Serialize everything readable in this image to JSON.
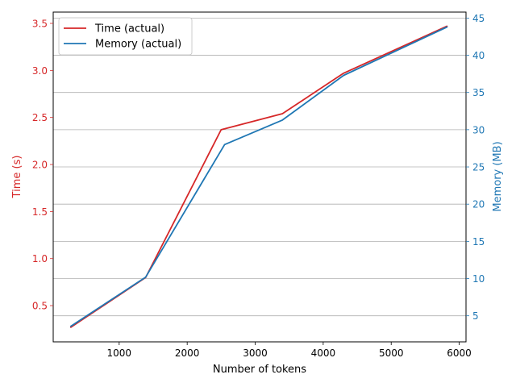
{
  "chart_data": {
    "type": "line",
    "title": "",
    "xlabel": "Number of tokens",
    "ylabel_left": "Time (s)",
    "ylabel_right": "Memory (MB)",
    "xlim": [
      30,
      6100
    ],
    "ylim_left": [
      0.115,
      3.62
    ],
    "ylim_right": [
      1.5,
      45.8
    ],
    "x_ticks": [
      1000,
      2000,
      3000,
      4000,
      5000,
      6000
    ],
    "y_left_ticks": [
      0.5,
      1.0,
      1.5,
      2.0,
      2.5,
      3.0,
      3.5
    ],
    "y_right_ticks": [
      5,
      10,
      15,
      20,
      25,
      30,
      35,
      40,
      45
    ],
    "grid": "horizontal lines at right-axis ticks",
    "legend_position": "top-left",
    "colors": {
      "time": "#d62728",
      "memory": "#1f77b4",
      "grid": "#b0b0b0"
    },
    "series": [
      {
        "name": "Time (actual)",
        "axis": "left",
        "x": [
          290,
          1390,
          2500,
          3400,
          4300,
          5820
        ],
        "y": [
          0.27,
          0.8,
          2.37,
          2.54,
          2.97,
          3.47
        ]
      },
      {
        "name": "Memory (actual)",
        "axis": "right",
        "x": [
          290,
          1390,
          2550,
          3400,
          4300,
          5820
        ],
        "y": [
          3.6,
          10.2,
          28.0,
          31.3,
          37.3,
          43.8
        ]
      }
    ],
    "legend": [
      "Time (actual)",
      "Memory (actual)"
    ]
  }
}
